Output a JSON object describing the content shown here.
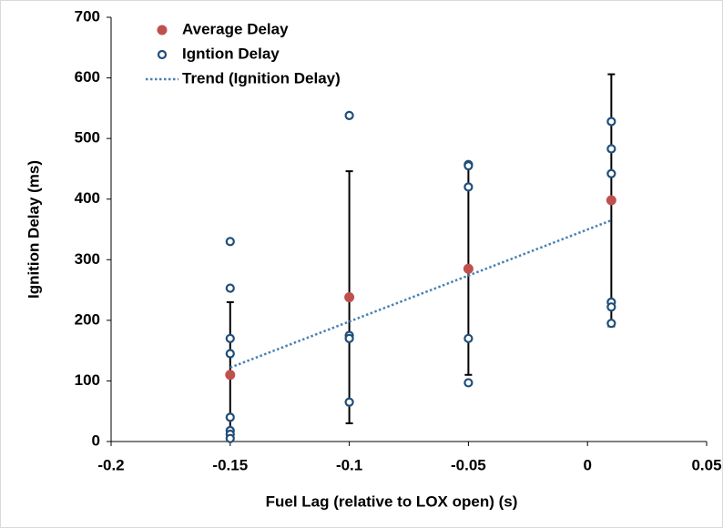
{
  "chart_data": {
    "type": "scatter",
    "x_label": "Fuel Lag (relative to LOX open) (s)",
    "y_label": "Ignition Delay (ms)",
    "xlim": [
      -0.2,
      0.05
    ],
    "xticks": [
      -0.2,
      -0.15,
      -0.1,
      -0.05,
      0,
      0.05
    ],
    "ylim": [
      0,
      700
    ],
    "yticks": [
      0,
      100,
      200,
      300,
      400,
      500,
      600,
      700
    ],
    "grid": false,
    "legend": "top-left",
    "series": [
      {
        "name": "Average Delay",
        "color": "#c0504d",
        "type": "scatter",
        "fill": "filled",
        "x": [
          -0.15,
          -0.1,
          -0.05,
          0.01
        ],
        "values": [
          110,
          238,
          285,
          398
        ],
        "errors": [
          120,
          208,
          175,
          208
        ]
      },
      {
        "name": "Igntion Delay",
        "color": "#1f4e79",
        "type": "scatter",
        "fill": "hollow",
        "x": [
          -0.15,
          -0.15,
          -0.15,
          -0.15,
          -0.15,
          -0.15,
          -0.15,
          -0.15,
          -0.1,
          -0.1,
          -0.1,
          -0.1,
          -0.05,
          -0.05,
          -0.05,
          -0.05,
          -0.05,
          0.01,
          0.01,
          0.01,
          0.01,
          0.01,
          0.01
        ],
        "values": [
          330,
          253,
          170,
          145,
          40,
          18,
          12,
          5,
          538,
          175,
          170,
          65,
          457,
          455,
          420,
          170,
          97,
          528,
          483,
          442,
          230,
          222,
          195
        ]
      },
      {
        "name": "Trend (Ignition Delay)",
        "color": "#4a7fb5",
        "type": "line",
        "dash": "dotted",
        "x": [
          -0.15,
          0.01
        ],
        "values": [
          122,
          365
        ]
      }
    ]
  }
}
